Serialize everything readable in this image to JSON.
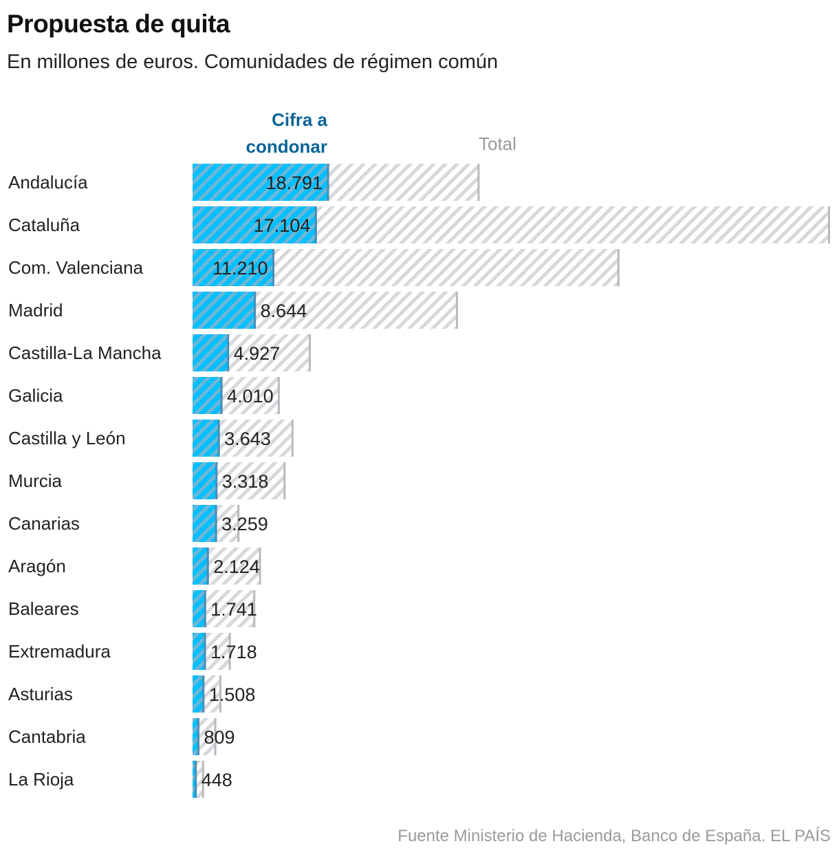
{
  "chart_data": {
    "type": "bar",
    "orientation": "horizontal",
    "title": "Propuesta de quita",
    "subtitle": "En millones de euros. Comunidades de régimen común",
    "source": "Fuente Ministerio de Hacienda, Banco de España. EL PAÍS",
    "series": [
      {
        "name": "Cifra a condonar",
        "color": "#00bfff",
        "values": [
          18791,
          17104,
          11210,
          8644,
          4927,
          4010,
          3643,
          3318,
          3259,
          2124,
          1741,
          1718,
          1508,
          809,
          448
        ]
      },
      {
        "name": "Total",
        "color": "#d6d8dc",
        "values": [
          39800,
          88400,
          59200,
          36800,
          16400,
          12100,
          14000,
          12900,
          6500,
          9500,
          8700,
          5300,
          4000,
          3300,
          1600
        ]
      }
    ],
    "value_labels": [
      "18.791",
      "17.104",
      "11.210",
      "8.644",
      "4.927",
      "4.010",
      "3.643",
      "3.318",
      "3.259",
      "2.124",
      "1.741",
      "1.718",
      "1.508",
      "809",
      "448"
    ],
    "categories": [
      "Andalucía",
      "Cataluña",
      "Com. Valenciana",
      "Madrid",
      "Castilla-La Mancha",
      "Galicia",
      "Castilla y León",
      "Murcia",
      "Canarias",
      "Aragón",
      "Baleares",
      "Extremadura",
      "Asturias",
      "Cantabria",
      "La Rioja"
    ],
    "legend": {
      "cifra_line1": "Cifra a",
      "cifra_line2": "condonar",
      "total": "Total"
    },
    "grid": false
  }
}
